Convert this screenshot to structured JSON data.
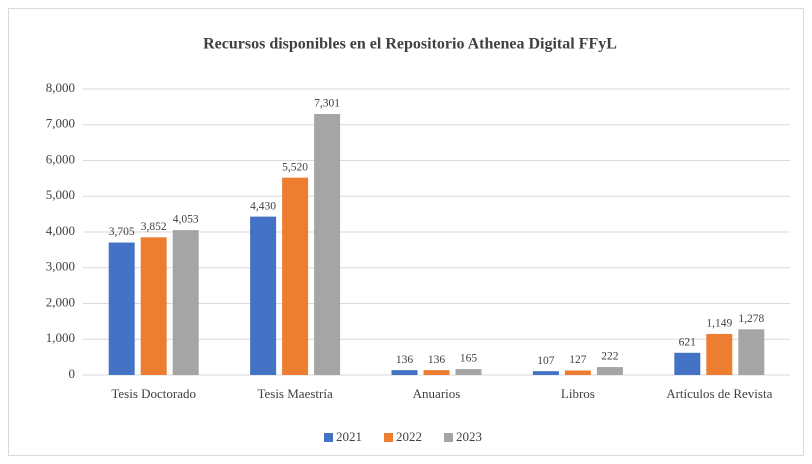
{
  "chart_data": {
    "type": "bar",
    "title": "Recursos disponibles en el Repositorio Athenea Digital FFyL",
    "categories": [
      "Tesis Doctorado",
      "Tesis Maestría",
      "Anuarios",
      "Libros",
      "Artículos de Revista"
    ],
    "series": [
      {
        "name": "2021",
        "color": "#4472c4",
        "values": [
          3705,
          4430,
          136,
          107,
          621
        ],
        "value_labels": [
          "3,705",
          "4,430",
          "136",
          "107",
          "621"
        ]
      },
      {
        "name": "2022",
        "color": "#ed7d31",
        "values": [
          3852,
          5520,
          136,
          127,
          1149
        ],
        "value_labels": [
          "3,852",
          "5,520",
          "136",
          "127",
          "1,149"
        ]
      },
      {
        "name": "2023",
        "color": "#a5a5a5",
        "values": [
          4053,
          7301,
          165,
          222,
          1278
        ],
        "value_labels": [
          "4,053",
          "7,301",
          "165",
          "222",
          "1,278"
        ]
      }
    ],
    "ylim": [
      0,
      8000
    ],
    "yticks": [
      0,
      {
        "value": 1000,
        "label": "1,000"
      },
      {
        "value": 2000,
        "label": "2,000"
      },
      {
        "value": 3000,
        "label": "3,000"
      },
      {
        "value": 4000,
        "label": "4,000"
      },
      {
        "value": 5000,
        "label": "5,000"
      },
      {
        "value": 6000,
        "label": "6,000"
      },
      {
        "value": 7000,
        "label": "7,000"
      },
      {
        "value": 8000,
        "label": "8,000"
      }
    ],
    "grid": true,
    "legend": "bottom"
  }
}
